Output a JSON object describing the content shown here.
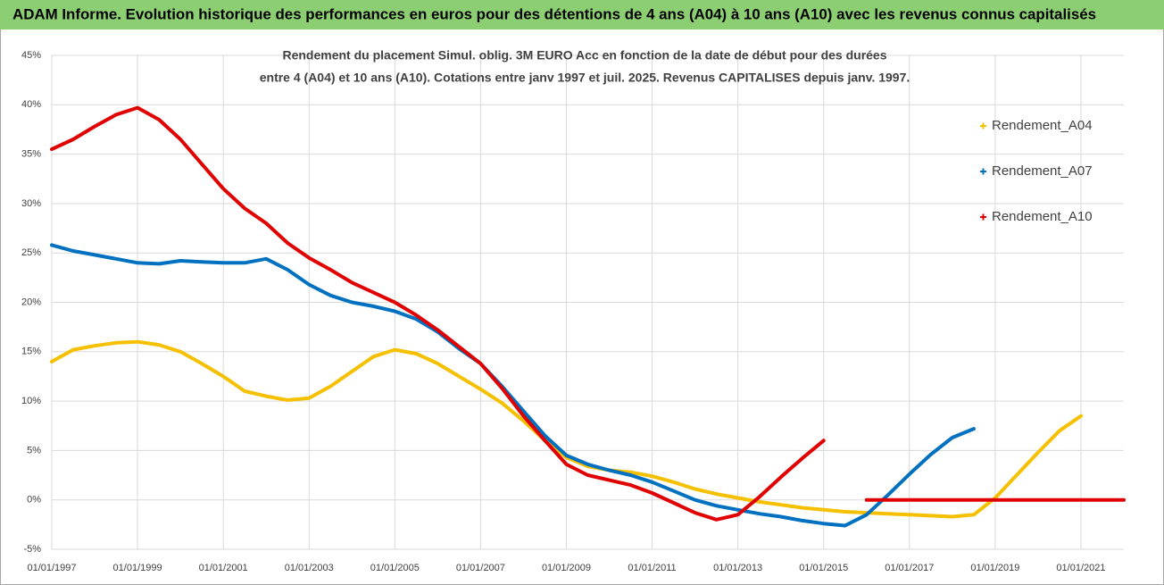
{
  "header": "ADAM Informe. Evolution historique des performances en euros pour des détentions de 4 ans (A04) à 10 ans (A10) avec les revenus connus capitalisés",
  "chart_data": {
    "type": "line",
    "title": [
      "Rendement du placement Simul. oblig. 3M EURO Acc en fonction de la date de début pour des durées",
      "entre 4 (A04) et 10 ans (A10). Cotations entre janv 1997 et juil. 2025. Revenus CAPITALISES depuis janv. 1997."
    ],
    "x": [
      "01/01/1997",
      "01/07/1997",
      "01/01/1998",
      "01/07/1998",
      "01/01/1999",
      "01/07/1999",
      "01/01/2000",
      "01/07/2000",
      "01/01/2001",
      "01/07/2001",
      "01/01/2002",
      "01/07/2002",
      "01/01/2003",
      "01/07/2003",
      "01/01/2004",
      "01/07/2004",
      "01/01/2005",
      "01/07/2005",
      "01/01/2006",
      "01/07/2006",
      "01/01/2007",
      "01/07/2007",
      "01/01/2008",
      "01/07/2008",
      "01/01/2009",
      "01/07/2009",
      "01/01/2010",
      "01/07/2010",
      "01/01/2011",
      "01/07/2011",
      "01/01/2012",
      "01/07/2012",
      "01/01/2013",
      "01/07/2013",
      "01/01/2014",
      "01/07/2014",
      "01/01/2015",
      "01/07/2015",
      "01/01/2016",
      "01/07/2016",
      "01/01/2017",
      "01/07/2017",
      "01/01/2018",
      "01/07/2018",
      "01/01/2019",
      "01/07/2019",
      "01/01/2020",
      "01/07/2020",
      "01/01/2021",
      "01/07/2021",
      "01/01/2022"
    ],
    "series": [
      {
        "name": "Rendement_A04",
        "color": "#f5c000",
        "values": [
          14,
          15.2,
          15.6,
          15.9,
          16,
          15.7,
          15,
          13.8,
          12.5,
          11,
          10.5,
          10.1,
          10.3,
          11.5,
          13,
          14.5,
          15.2,
          14.8,
          13.8,
          12.5,
          11.2,
          9.8,
          8,
          6,
          4.3,
          3.4,
          3.0,
          2.8,
          2.4,
          1.8,
          1.1,
          0.6,
          0.2,
          -0.2,
          -0.5,
          -0.8,
          -1.0,
          -1.2,
          -1.3,
          -1.4,
          -1.5,
          -1.6,
          -1.7,
          -1.5,
          0.2,
          2.5,
          4.8,
          7,
          8.5,
          null,
          null
        ]
      },
      {
        "name": "Rendement_A07",
        "color": "#0070c0",
        "values": [
          25.8,
          25.2,
          24.8,
          24.4,
          24,
          23.9,
          24.2,
          24.1,
          24,
          24.0,
          24.4,
          23.3,
          21.8,
          20.7,
          20,
          19.6,
          19.1,
          18.3,
          17,
          15.3,
          13.8,
          11.5,
          9,
          6.5,
          4.5,
          3.6,
          3.0,
          2.5,
          1.8,
          0.9,
          0,
          -0.6,
          -1.0,
          -1.4,
          -1.7,
          -2.1,
          -2.4,
          -2.6,
          -1.5,
          0.5,
          2.6,
          4.6,
          6.3,
          7.2,
          null,
          null,
          null,
          null,
          null,
          null,
          null
        ]
      },
      {
        "name": "Rendement_A10",
        "color": "#e00000",
        "values": [
          35.5,
          36.5,
          37.8,
          39,
          39.7,
          38.5,
          36.5,
          34,
          31.5,
          29.5,
          28,
          26,
          24.5,
          23.3,
          22,
          21,
          20,
          18.7,
          17.2,
          15.5,
          13.8,
          11.3,
          8.5,
          6,
          3.6,
          2.5,
          2,
          1.5,
          0.7,
          -0.3,
          -1.3,
          -2,
          -1.5,
          0.3,
          2.3,
          4.2,
          6.0,
          null,
          0,
          0,
          0,
          0,
          0,
          0,
          0,
          0,
          0,
          0,
          0,
          0,
          0
        ]
      }
    ],
    "xlim": [
      "01/01/1997",
      "01/01/2022"
    ],
    "xticks": [
      "01/01/1997",
      "01/01/1999",
      "01/01/2001",
      "01/01/2003",
      "01/01/2005",
      "01/01/2007",
      "01/01/2009",
      "01/01/2011",
      "01/01/2013",
      "01/01/2015",
      "01/01/2017",
      "01/01/2019",
      "01/01/2021"
    ],
    "ylim": [
      -5,
      45
    ],
    "yticks": [
      {
        "value": -5,
        "label": "-5%"
      },
      {
        "value": 0,
        "label": "0%"
      },
      {
        "value": 5,
        "label": "5%"
      },
      {
        "value": 10,
        "label": "10%"
      },
      {
        "value": 15,
        "label": "15%"
      },
      {
        "value": 20,
        "label": "20%"
      },
      {
        "value": 25,
        "label": "25%"
      },
      {
        "value": 30,
        "label": "30%"
      },
      {
        "value": 35,
        "label": "35%"
      },
      {
        "value": 40,
        "label": "40%"
      },
      {
        "value": 45,
        "label": "45%"
      }
    ],
    "grid": true,
    "legend": "right"
  }
}
